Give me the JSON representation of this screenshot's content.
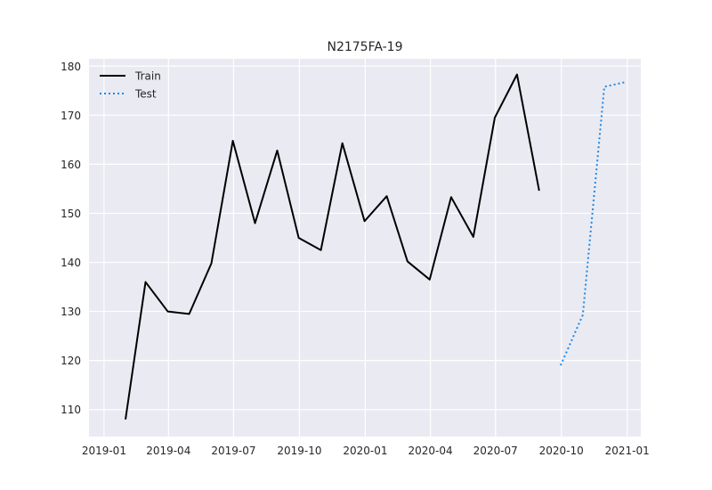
{
  "chart_data": {
    "type": "line",
    "title": "N2175FA-19",
    "xlabel": "",
    "ylabel": "",
    "x_axis": {
      "type": "date",
      "range": [
        "2018-12-11",
        "2021-01-20"
      ],
      "ticks": [
        "2019-01-01",
        "2019-04-01",
        "2019-07-01",
        "2019-10-01",
        "2020-01-01",
        "2020-04-01",
        "2020-07-01",
        "2020-10-01",
        "2021-01-01"
      ],
      "tick_labels": [
        "2019-01",
        "2019-04",
        "2019-07",
        "2019-10",
        "2020-01",
        "2020-04",
        "2020-07",
        "2020-10",
        "2021-01"
      ]
    },
    "y_axis": {
      "range": [
        104.5,
        181.5
      ],
      "ticks": [
        110,
        120,
        130,
        140,
        150,
        160,
        170,
        180
      ],
      "tick_labels": [
        "110",
        "120",
        "130",
        "140",
        "150",
        "160",
        "170",
        "180"
      ]
    },
    "grid": true,
    "legend_position": "top-left",
    "series": [
      {
        "name": "Train",
        "color": "#000000",
        "style": "solid",
        "x": [
          "2019-01-31",
          "2019-02-28",
          "2019-03-31",
          "2019-04-30",
          "2019-05-31",
          "2019-06-30",
          "2019-07-31",
          "2019-08-31",
          "2019-09-30",
          "2019-10-31",
          "2019-11-30",
          "2019-12-31",
          "2020-01-31",
          "2020-02-29",
          "2020-03-31",
          "2020-04-30",
          "2020-05-31",
          "2020-06-30",
          "2020-07-31",
          "2020-08-31"
        ],
        "values": [
          108.0,
          136.0,
          130.0,
          129.5,
          139.8,
          164.8,
          148.0,
          162.8,
          145.0,
          142.5,
          164.3,
          148.4,
          153.5,
          140.2,
          136.5,
          153.3,
          145.2,
          169.5,
          178.3,
          154.6
        ]
      },
      {
        "name": "Test",
        "color": "#1e88e5",
        "style": "dotted",
        "x": [
          "2020-09-30",
          "2020-10-31",
          "2020-11-30",
          "2020-12-31"
        ],
        "values": [
          119.0,
          129.3,
          175.8,
          176.8
        ]
      }
    ]
  }
}
